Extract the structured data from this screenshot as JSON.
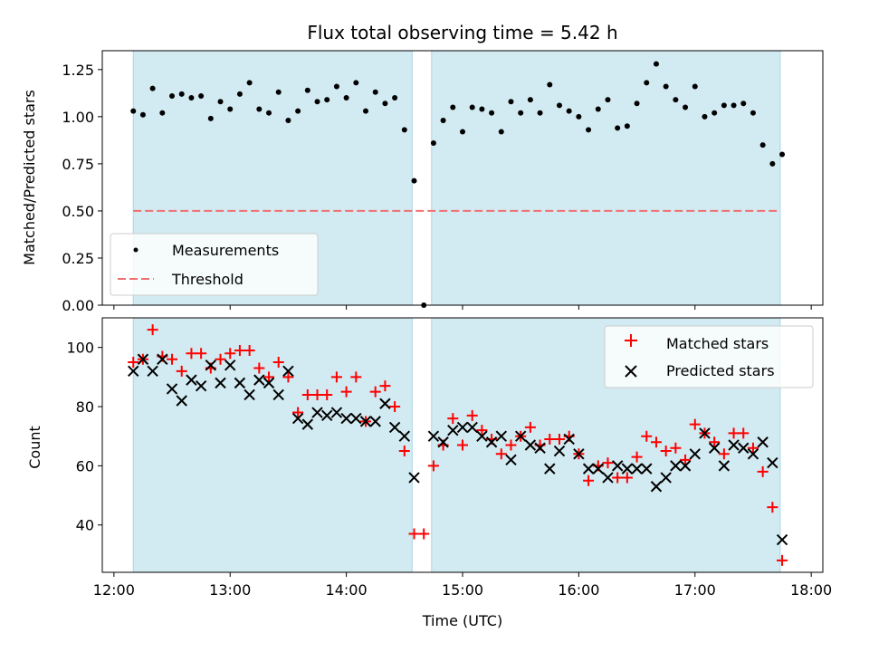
{
  "chart_data": [
    {
      "type": "scatter",
      "title": "Flux total observing time = 5.42 h",
      "xlabel": "",
      "ylabel": "Matched/Predicted stars",
      "xlim": [
        "12:00",
        "18:00"
      ],
      "ylim": [
        0.0,
        1.35
      ],
      "x_tick_labels": [],
      "y_ticks": [
        0.0,
        0.25,
        0.5,
        0.75,
        1.0,
        1.25
      ],
      "y_tick_labels": [
        "0.00",
        "0.25",
        "0.50",
        "0.75",
        "1.00",
        "1.25"
      ],
      "legend_position": "lower-left",
      "observing_windows": [
        {
          "start": "12:10",
          "end": "14:34"
        },
        {
          "start": "14:44",
          "end": "17:44"
        }
      ],
      "threshold": {
        "name": "Threshold",
        "value": 0.5,
        "color": "#f07070",
        "style": "dashed"
      },
      "series": [
        {
          "name": "Measurements",
          "color": "#000000",
          "marker": "dot",
          "x": [
            "12:10",
            "12:15",
            "12:20",
            "12:25",
            "12:30",
            "12:35",
            "12:40",
            "12:45",
            "12:50",
            "12:55",
            "13:00",
            "13:05",
            "13:10",
            "13:15",
            "13:20",
            "13:25",
            "13:30",
            "13:35",
            "13:40",
            "13:45",
            "13:50",
            "13:55",
            "14:00",
            "14:05",
            "14:10",
            "14:15",
            "14:20",
            "14:25",
            "14:30",
            "14:35",
            "14:40",
            "14:45",
            "14:50",
            "14:55",
            "15:00",
            "15:05",
            "15:10",
            "15:15",
            "15:20",
            "15:25",
            "15:30",
            "15:35",
            "15:40",
            "15:45",
            "15:50",
            "15:55",
            "16:00",
            "16:05",
            "16:10",
            "16:15",
            "16:20",
            "16:25",
            "16:30",
            "16:35",
            "16:40",
            "16:45",
            "16:50",
            "16:55",
            "17:00",
            "17:05",
            "17:10",
            "17:15",
            "17:20",
            "17:25",
            "17:30",
            "17:35",
            "17:40",
            "17:45"
          ],
          "y": [
            1.03,
            1.01,
            1.15,
            1.02,
            1.11,
            1.12,
            1.1,
            1.11,
            0.99,
            1.08,
            1.04,
            1.12,
            1.18,
            1.04,
            1.02,
            1.13,
            0.98,
            1.03,
            1.14,
            1.08,
            1.09,
            1.16,
            1.1,
            1.18,
            1.03,
            1.13,
            1.07,
            1.1,
            0.93,
            0.66,
            0.0,
            0.86,
            0.98,
            1.05,
            0.92,
            1.05,
            1.04,
            1.02,
            0.92,
            1.08,
            1.02,
            1.09,
            1.02,
            1.17,
            1.06,
            1.03,
            1.0,
            0.93,
            1.04,
            1.09,
            0.94,
            0.95,
            1.07,
            1.18,
            1.28,
            1.16,
            1.09,
            1.05,
            1.16,
            1.0,
            1.02,
            1.06,
            1.06,
            1.07,
            1.02,
            0.85,
            0.75,
            0.8
          ]
        }
      ]
    },
    {
      "type": "scatter",
      "title": "",
      "xlabel": "Time (UTC)",
      "ylabel": "Count",
      "xlim": [
        "12:00",
        "18:00"
      ],
      "ylim": [
        24,
        110
      ],
      "x_tick_labels": [
        "12:00",
        "13:00",
        "14:00",
        "15:00",
        "16:00",
        "17:00",
        "18:00"
      ],
      "y_ticks": [
        40,
        60,
        80,
        100
      ],
      "y_tick_labels": [
        "40",
        "60",
        "80",
        "100"
      ],
      "legend_position": "top-right",
      "observing_windows": [
        {
          "start": "12:10",
          "end": "14:34"
        },
        {
          "start": "14:44",
          "end": "17:44"
        }
      ],
      "series": [
        {
          "name": "Matched stars",
          "color": "#ff0000",
          "marker": "plus",
          "x": [
            "12:10",
            "12:15",
            "12:20",
            "12:25",
            "12:30",
            "12:35",
            "12:40",
            "12:45",
            "12:50",
            "12:55",
            "13:00",
            "13:05",
            "13:10",
            "13:15",
            "13:20",
            "13:25",
            "13:30",
            "13:35",
            "13:40",
            "13:45",
            "13:50",
            "13:55",
            "14:00",
            "14:05",
            "14:10",
            "14:15",
            "14:20",
            "14:25",
            "14:30",
            "14:35",
            "14:40",
            "14:45",
            "14:50",
            "14:55",
            "15:00",
            "15:05",
            "15:10",
            "15:15",
            "15:20",
            "15:25",
            "15:30",
            "15:35",
            "15:40",
            "15:45",
            "15:50",
            "15:55",
            "16:00",
            "16:05",
            "16:10",
            "16:15",
            "16:20",
            "16:25",
            "16:30",
            "16:35",
            "16:40",
            "16:45",
            "16:50",
            "16:55",
            "17:00",
            "17:05",
            "17:10",
            "17:15",
            "17:20",
            "17:25",
            "17:30",
            "17:35",
            "17:40",
            "17:45"
          ],
          "y": [
            95,
            96,
            106,
            97,
            96,
            92,
            98,
            98,
            93,
            96,
            98,
            99,
            99,
            93,
            90,
            95,
            90,
            78,
            84,
            84,
            84,
            90,
            85,
            90,
            75,
            85,
            87,
            80,
            65,
            37,
            37,
            60,
            67,
            76,
            67,
            77,
            72,
            69,
            64,
            67,
            70,
            73,
            67,
            69,
            69,
            70,
            64,
            55,
            60,
            61,
            56,
            56,
            63,
            70,
            68,
            65,
            66,
            62,
            74,
            71,
            68,
            64,
            71,
            71,
            66,
            58,
            46,
            28
          ]
        },
        {
          "name": "Predicted stars",
          "color": "#000000",
          "marker": "x",
          "x": [
            "12:10",
            "12:15",
            "12:20",
            "12:25",
            "12:30",
            "12:35",
            "12:40",
            "12:45",
            "12:50",
            "12:55",
            "13:00",
            "13:05",
            "13:10",
            "13:15",
            "13:20",
            "13:25",
            "13:30",
            "13:35",
            "13:40",
            "13:45",
            "13:50",
            "13:55",
            "14:00",
            "14:05",
            "14:10",
            "14:15",
            "14:20",
            "14:25",
            "14:30",
            "14:35",
            "14:45",
            "14:50",
            "14:55",
            "15:00",
            "15:05",
            "15:10",
            "15:15",
            "15:20",
            "15:25",
            "15:30",
            "15:35",
            "15:40",
            "15:45",
            "15:50",
            "15:55",
            "16:00",
            "16:05",
            "16:10",
            "16:15",
            "16:20",
            "16:25",
            "16:30",
            "16:35",
            "16:40",
            "16:45",
            "16:50",
            "16:55",
            "17:00",
            "17:05",
            "17:10",
            "17:15",
            "17:20",
            "17:25",
            "17:30",
            "17:35",
            "17:40",
            "17:45"
          ],
          "y": [
            92,
            96,
            92,
            96,
            86,
            82,
            89,
            87,
            94,
            88,
            94,
            88,
            84,
            89,
            88,
            84,
            92,
            76,
            74,
            78,
            77,
            78,
            76,
            76,
            75,
            75,
            81,
            73,
            70,
            56,
            70,
            68,
            72,
            73,
            73,
            70,
            68,
            70,
            62,
            70,
            67,
            66,
            59,
            65,
            69,
            64,
            59,
            59,
            56,
            60,
            59,
            59,
            59,
            53,
            56,
            60,
            60,
            64,
            71,
            66,
            60,
            67,
            66,
            64,
            68,
            61,
            35
          ]
        }
      ]
    }
  ]
}
